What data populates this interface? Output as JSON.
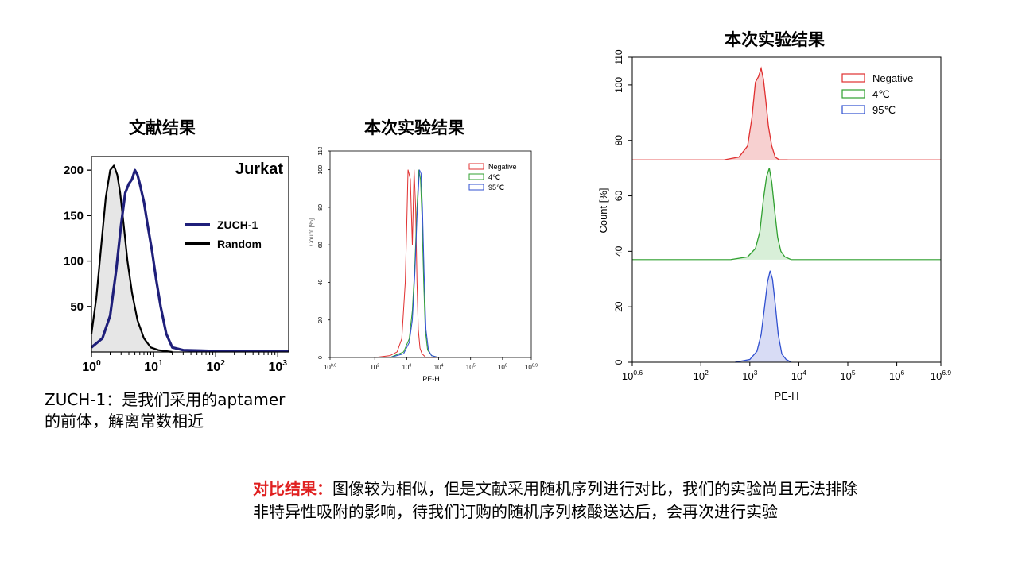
{
  "slide": {
    "left_title": "文献结果",
    "middle_title": "本次实验结果",
    "right_title": "本次实验结果",
    "caption_line1": "ZUCH-1：是我们采用的aptamer",
    "caption_line2": "的前体，解离常数相近",
    "conclusion_label": "对比结果：",
    "conclusion_text": "图像较为相似，但是文献采用随机序列进行对比，我们的实验尚且无法排除非特异性吸附的影响，待我们订购的随机序列核酸送达后，会再次进行实验"
  },
  "chart_data": [
    {
      "type": "line",
      "panel_label": "Jurkat",
      "xscale": "log",
      "xlim": [
        1,
        1500
      ],
      "ylim": [
        0,
        215
      ],
      "x_tick_labels": [
        "10^0",
        "10^1",
        "10^2",
        "10^3"
      ],
      "y_tick_labels": [
        "50",
        "100",
        "150",
        "200"
      ],
      "y_ticks": [
        50,
        100,
        150,
        200
      ],
      "legend": [
        "ZUCH-1",
        "Random"
      ],
      "legend_position": "right",
      "series": [
        {
          "name": "Random",
          "color": "#000000",
          "filled": true,
          "x": [
            1,
            1.2,
            1.45,
            1.7,
            2.0,
            2.3,
            2.6,
            2.9,
            3.3,
            3.8,
            4.5,
            5.5,
            7.0,
            9.0,
            12,
            20
          ],
          "y": [
            20,
            60,
            120,
            170,
            200,
            205,
            195,
            175,
            140,
            100,
            65,
            35,
            15,
            5,
            2,
            0
          ]
        },
        {
          "name": "ZUCH-1",
          "color": "#1f1f7a",
          "filled": false,
          "x": [
            1,
            1.5,
            2.0,
            2.5,
            3.0,
            3.5,
            4.0,
            4.5,
            5.0,
            5.5,
            6.0,
            7.0,
            8.0,
            9.5,
            11,
            13,
            16,
            20,
            30,
            100,
            1500
          ],
          "y": [
            5,
            15,
            40,
            90,
            140,
            175,
            185,
            190,
            200,
            195,
            185,
            165,
            140,
            110,
            80,
            50,
            20,
            5,
            2,
            1,
            1
          ]
        }
      ]
    },
    {
      "type": "line",
      "xlabel": "PE-H",
      "xscale": "log",
      "xlim": [
        3.98,
        7940000
      ],
      "ylim": [
        0,
        110
      ],
      "x_tick_labels": [
        "10^0.6",
        "10^2",
        "10^3",
        "10^4",
        "10^5",
        "10^6",
        "10^6.9"
      ],
      "y_tick_labels": [
        "0",
        "20",
        "40",
        "60",
        "80",
        "100",
        "110"
      ],
      "y_ticks": [
        0,
        20,
        40,
        60,
        80,
        100,
        110
      ],
      "legend": [
        "Negative",
        "4℃",
        "95℃"
      ],
      "legend_position": "top-right",
      "series": [
        {
          "name": "Negative",
          "color": "#e03030",
          "x": [
            100,
            300,
            500,
            700,
            900,
            1000,
            1100,
            1300,
            1500,
            1700,
            1900,
            2100,
            2300,
            2600,
            3000,
            4000,
            10000
          ],
          "y": [
            0,
            1,
            3,
            10,
            40,
            70,
            100,
            95,
            60,
            100,
            80,
            40,
            15,
            5,
            2,
            0,
            0
          ]
        },
        {
          "name": "4℃",
          "color": "#30a030",
          "x": [
            300,
            800,
            1200,
            1500,
            1800,
            2100,
            2400,
            2700,
            3000,
            3400,
            3800,
            4500,
            6000,
            10000
          ],
          "y": [
            0,
            3,
            10,
            25,
            50,
            80,
            100,
            95,
            75,
            40,
            15,
            4,
            1,
            0
          ]
        },
        {
          "name": "95℃",
          "color": "#3050d0",
          "x": [
            300,
            800,
            1200,
            1500,
            1800,
            2100,
            2500,
            2800,
            3100,
            3500,
            4000,
            4800,
            6000,
            10000
          ],
          "y": [
            0,
            2,
            8,
            20,
            45,
            75,
            100,
            98,
            80,
            45,
            15,
            4,
            1,
            0
          ]
        }
      ]
    },
    {
      "type": "area",
      "xlabel": "PE-H",
      "ylabel": "Count [%]",
      "xscale": "log",
      "xlim": [
        3.98,
        7940000
      ],
      "ylim": [
        0,
        110
      ],
      "x_tick_labels": [
        "10^0.6",
        "10^2",
        "10^3",
        "10^4",
        "10^5",
        "10^6",
        "10^6.9"
      ],
      "y_tick_labels": [
        "0",
        "20",
        "40",
        "60",
        "80",
        "100",
        "110"
      ],
      "y_ticks": [
        0,
        20,
        40,
        60,
        80,
        100,
        110
      ],
      "legend": [
        "Negative",
        "4℃",
        "95℃"
      ],
      "legend_position": "top-right",
      "offset_overlay": true,
      "series": [
        {
          "name": "Negative",
          "color": "#e03030",
          "fill": "#f7d0d0",
          "baseline": 73,
          "x": [
            300,
            600,
            900,
            1100,
            1300,
            1500,
            1700,
            1900,
            2100,
            2400,
            2800,
            3300,
            4000,
            6000
          ],
          "y": [
            0,
            1,
            5,
            15,
            28,
            30,
            33,
            29,
            22,
            12,
            5,
            1,
            0,
            0
          ]
        },
        {
          "name": "4℃",
          "color": "#30a030",
          "fill": "#d8efd8",
          "baseline": 37,
          "x": [
            400,
            900,
            1300,
            1600,
            1900,
            2200,
            2500,
            2800,
            3200,
            3700,
            4300,
            5200,
            7000
          ],
          "y": [
            0,
            1,
            4,
            10,
            22,
            30,
            33,
            28,
            18,
            8,
            3,
            1,
            0
          ]
        },
        {
          "name": "95℃",
          "color": "#3050d0",
          "fill": "#d8dcf5",
          "baseline": 0,
          "x": [
            500,
            1000,
            1400,
            1700,
            2000,
            2300,
            2600,
            2900,
            3300,
            3800,
            4500,
            5500,
            7000
          ],
          "y": [
            0,
            1,
            4,
            10,
            20,
            29,
            33,
            30,
            21,
            10,
            3,
            1,
            0
          ]
        }
      ]
    }
  ]
}
